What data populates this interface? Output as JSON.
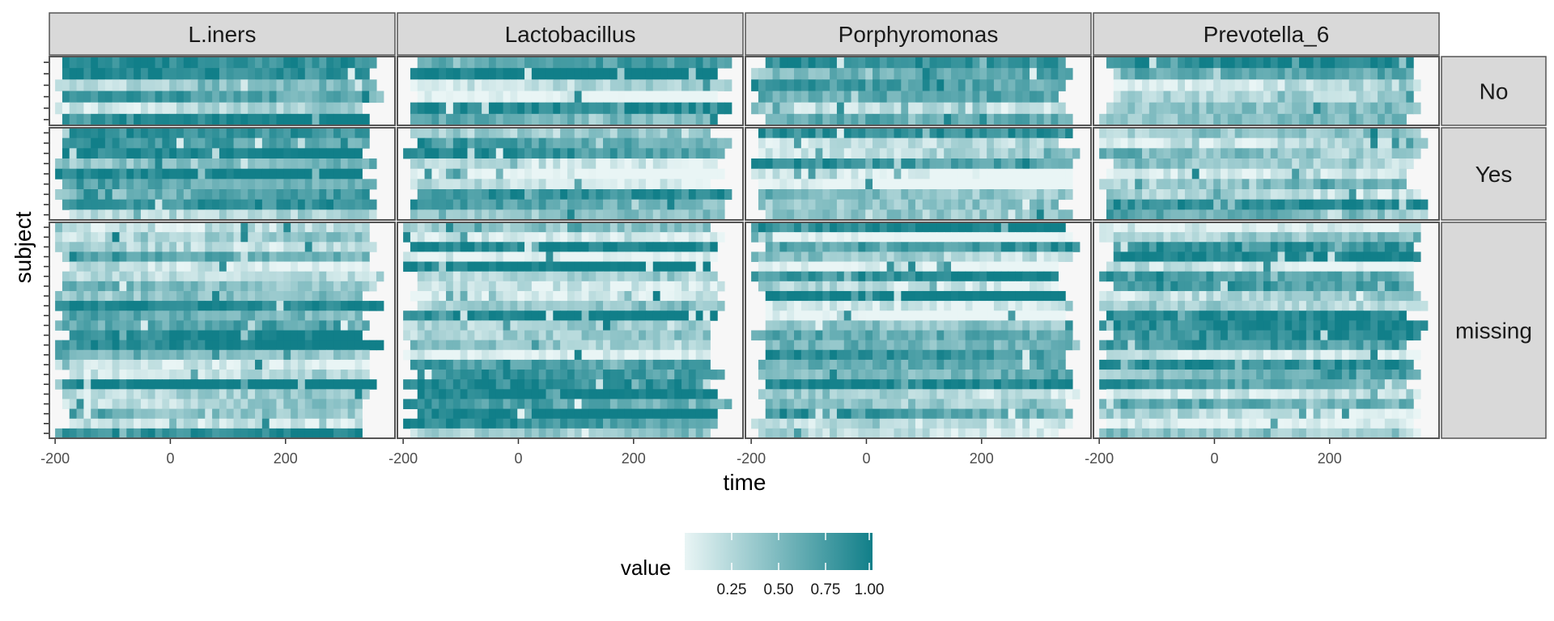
{
  "chart_data": {
    "type": "heatmap",
    "title": "",
    "xlabel": "time",
    "ylabel": "subject",
    "facet_columns": [
      "L.iners",
      "Lactobacillus",
      "Porphyromonas",
      "Prevotella_6"
    ],
    "facet_rows": [
      "No",
      "Yes",
      "missing"
    ],
    "x_ticks": [
      -200,
      0,
      200
    ],
    "x_tick_labels": [
      "-200",
      "0",
      "200"
    ],
    "xlim": [
      -210,
      390
    ],
    "legend": {
      "title": "value",
      "placement": "bottom",
      "range": [
        0,
        1
      ],
      "breaks": [
        0.25,
        0.5,
        0.75,
        1.0
      ],
      "break_labels": [
        "0.25",
        "0.50",
        "0.75",
        "1.00"
      ],
      "colors": [
        "#e9f5f5",
        "#117f89"
      ]
    },
    "missing_color": "#f7f7f7",
    "y_tick_labels_shown": false,
    "panel_border_color": "#555555",
    "strip_fill": "#d9d9d9"
  }
}
